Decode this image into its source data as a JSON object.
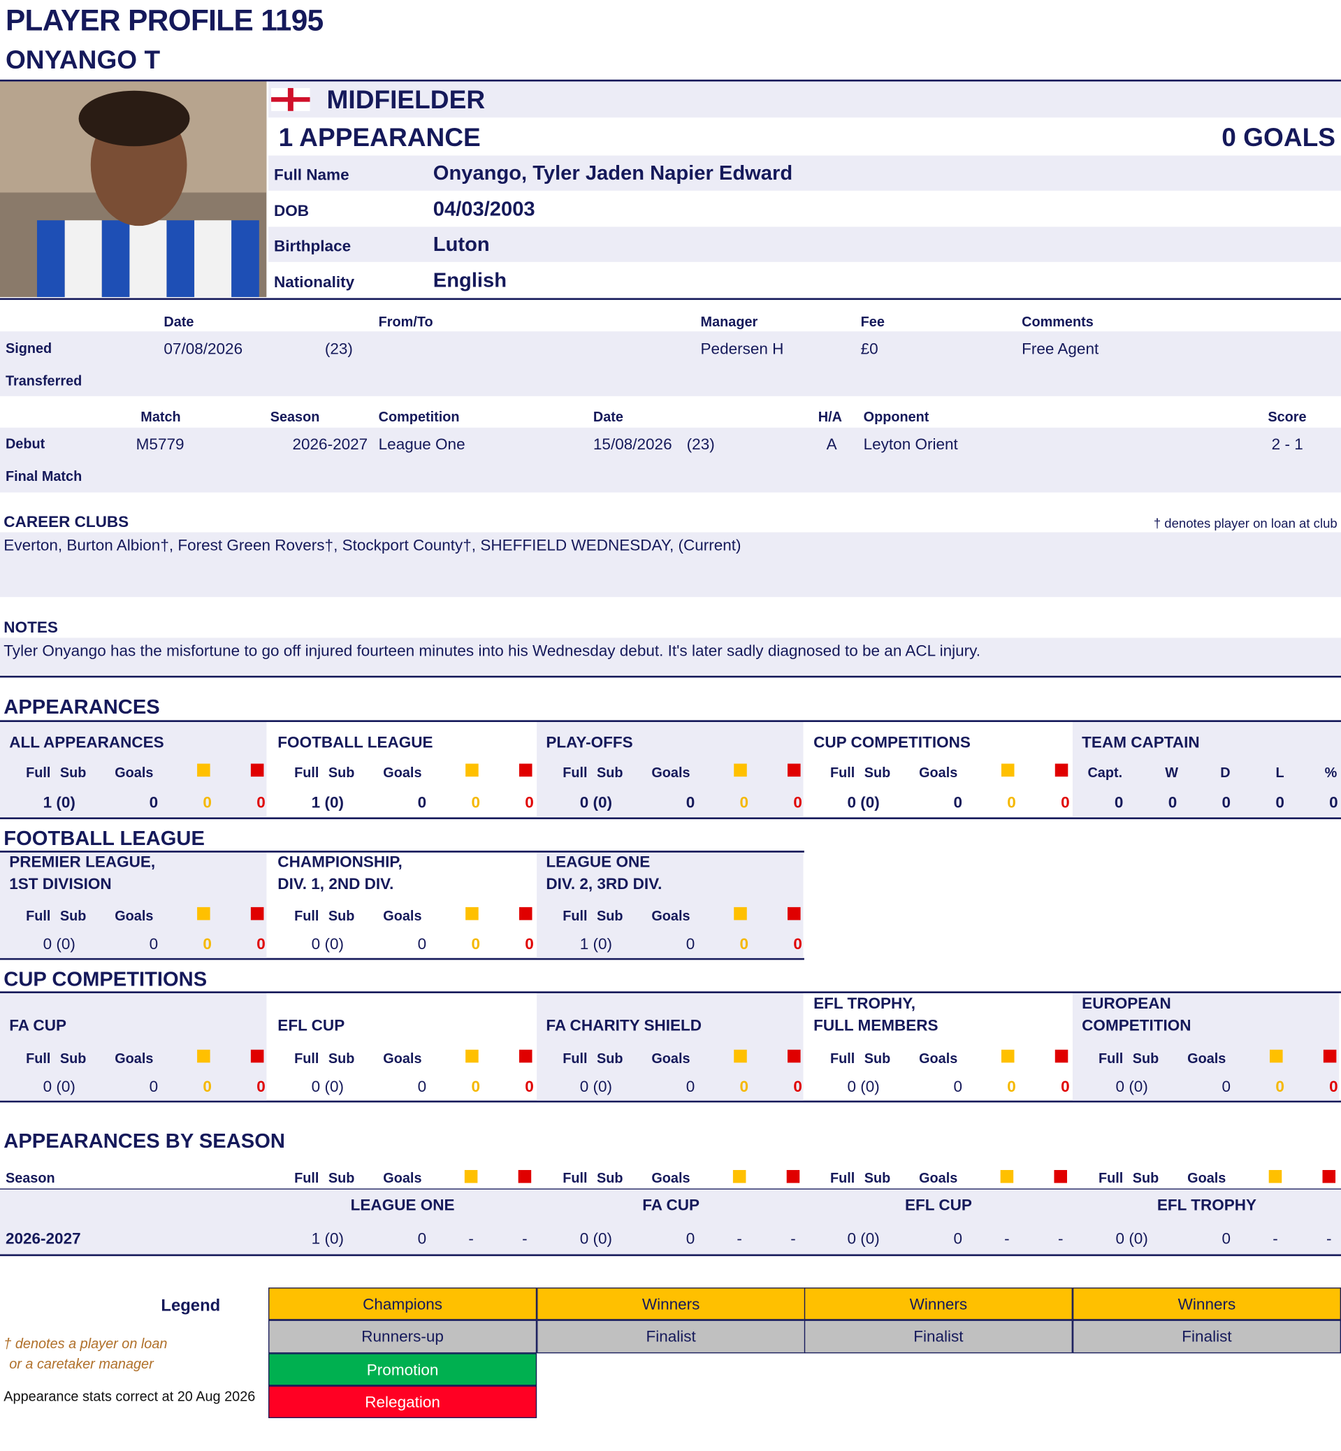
{
  "header": {
    "title": "PLAYER PROFILE 1195",
    "name": "ONYANGO T"
  },
  "profile": {
    "position": "MIDFIELDER",
    "appearances": "1 APPEARANCE",
    "goals": "0 GOALS",
    "fields": [
      {
        "label": "Full Name",
        "value": "Onyango, Tyler Jaden Napier Edward"
      },
      {
        "label": "DOB",
        "value": "04/03/2003"
      },
      {
        "label": "Birthplace",
        "value": "Luton"
      },
      {
        "label": "Nationality",
        "value": "English"
      }
    ]
  },
  "transfer": {
    "headers": [
      "Date",
      "From/To",
      "Manager",
      "Fee",
      "Comments"
    ],
    "rows": [
      {
        "label": "Signed",
        "cells": [
          "07/08/2026",
          "(23)",
          "Pedersen H",
          "£0",
          "Free Agent"
        ]
      },
      {
        "label": "Transferred",
        "cells": []
      }
    ]
  },
  "matches": {
    "headers": [
      "Match",
      "Season",
      "Competition",
      "Date",
      "H/A",
      "Opponent",
      "Score"
    ],
    "rows": [
      {
        "label": "Debut",
        "cells": [
          "M5779",
          "2026-2027",
          "League One",
          "15/08/2026",
          "(23)",
          "A",
          "Leyton Orient",
          "2 - 1"
        ]
      },
      {
        "label": "Final Match",
        "cells": []
      }
    ]
  },
  "career": {
    "title": "CAREER CLUBS",
    "note": "† denotes player on loan at club",
    "clubs": "Everton, Burton Albion†, Forest Green Rovers†, Stockport County†, SHEFFIELD WEDNESDAY, (Current)"
  },
  "notes": {
    "title": "NOTES",
    "text": "Tyler Onyango has the misfortune to go off injured fourteen minutes into his Wednesday debut.  It's later sadly diagnosed to be an ACL injury."
  },
  "appearances": {
    "title": "APPEARANCES",
    "blocks": [
      {
        "title": [
          "ALL APPEARANCES"
        ],
        "headers": [
          "Full Sub",
          "Goals"
        ],
        "values": [
          "1 (0)",
          0,
          0,
          0
        ]
      },
      {
        "title": [
          "FOOTBALL LEAGUE"
        ],
        "headers": [
          "Full Sub",
          "Goals"
        ],
        "values": [
          "1 (0)",
          0,
          0,
          0
        ]
      },
      {
        "title": [
          "PLAY-OFFS"
        ],
        "headers": [
          "Full Sub",
          "Goals"
        ],
        "values": [
          "0 (0)",
          0,
          0,
          0
        ]
      },
      {
        "title": [
          "CUP COMPETITIONS"
        ],
        "headers": [
          "Full Sub",
          "Goals"
        ],
        "values": [
          "0 (0)",
          0,
          0,
          0
        ]
      }
    ],
    "captain": {
      "title": [
        "TEAM CAPTAIN"
      ],
      "headers": [
        "Capt.",
        "W",
        "D",
        "L",
        "%"
      ],
      "values": [
        0,
        0,
        0,
        0,
        0
      ]
    }
  },
  "football_league": {
    "title": "FOOTBALL LEAGUE",
    "blocks": [
      {
        "title": [
          "PREMIER LEAGUE,",
          "1ST DIVISION"
        ],
        "headers": [
          "Full Sub",
          "Goals"
        ],
        "values": [
          "0 (0)",
          0,
          0,
          0
        ]
      },
      {
        "title": [
          "CHAMPIONSHIP,",
          "DIV. 1, 2ND DIV."
        ],
        "headers": [
          "Full Sub",
          "Goals"
        ],
        "values": [
          "0 (0)",
          0,
          0,
          0
        ]
      },
      {
        "title": [
          "LEAGUE ONE",
          "DIV. 2, 3RD DIV."
        ],
        "headers": [
          "Full Sub",
          "Goals"
        ],
        "values": [
          "1 (0)",
          0,
          0,
          0
        ]
      }
    ]
  },
  "cup_competitions": {
    "title": "CUP COMPETITIONS",
    "blocks": [
      {
        "title": [
          "FA CUP"
        ],
        "headers": [
          "Full Sub",
          "Goals"
        ],
        "values": [
          "0 (0)",
          0,
          0,
          0
        ]
      },
      {
        "title": [
          "EFL CUP"
        ],
        "headers": [
          "Full Sub",
          "Goals"
        ],
        "values": [
          "0 (0)",
          0,
          0,
          0
        ]
      },
      {
        "title": [
          "FA CHARITY SHIELD"
        ],
        "headers": [
          "Full Sub",
          "Goals"
        ],
        "values": [
          "0 (0)",
          0,
          0,
          0
        ]
      },
      {
        "title": [
          "EFL TROPHY,",
          "FULL MEMBERS"
        ],
        "headers": [
          "Full Sub",
          "Goals"
        ],
        "values": [
          "0 (0)",
          0,
          0,
          0
        ]
      },
      {
        "title": [
          "EUROPEAN",
          "COMPETITION"
        ],
        "headers": [
          "Full Sub",
          "Goals"
        ],
        "values": [
          "0 (0)",
          0,
          0,
          0
        ]
      }
    ]
  },
  "by_season": {
    "title": "APPEARANCES BY SEASON",
    "season_label": "Season",
    "groups": [
      {
        "name": "LEAGUE ONE",
        "headers": [
          "Full Sub",
          "Goals"
        ]
      },
      {
        "name": "FA CUP",
        "headers": [
          "Full Sub",
          "Goals"
        ]
      },
      {
        "name": "EFL CUP",
        "headers": [
          "Full Sub",
          "Goals"
        ]
      },
      {
        "name": "EFL TROPHY",
        "headers": [
          "Full Sub",
          "Goals"
        ]
      }
    ],
    "rows": [
      {
        "season": "2026-2027",
        "cells": [
          [
            "1 (0)",
            0,
            "-",
            "-"
          ],
          [
            "0 (0)",
            0,
            "-",
            "-"
          ],
          [
            "0 (0)",
            0,
            "-",
            "-"
          ],
          [
            "0 (0)",
            0,
            "-",
            "-"
          ]
        ]
      }
    ]
  },
  "legend": {
    "title": "Legend",
    "rows": [
      [
        "Champions",
        "Winners",
        "Winners",
        "Winners"
      ],
      [
        "Runners-up",
        "Finalist",
        "Finalist",
        "Finalist"
      ],
      [
        "Promotion"
      ],
      [
        "Relegation"
      ]
    ],
    "note_lines": [
      "† denotes a player on loan",
      "or a caretaker manager"
    ],
    "stats_note": "Appearance stats correct at 20 Aug 2026"
  }
}
